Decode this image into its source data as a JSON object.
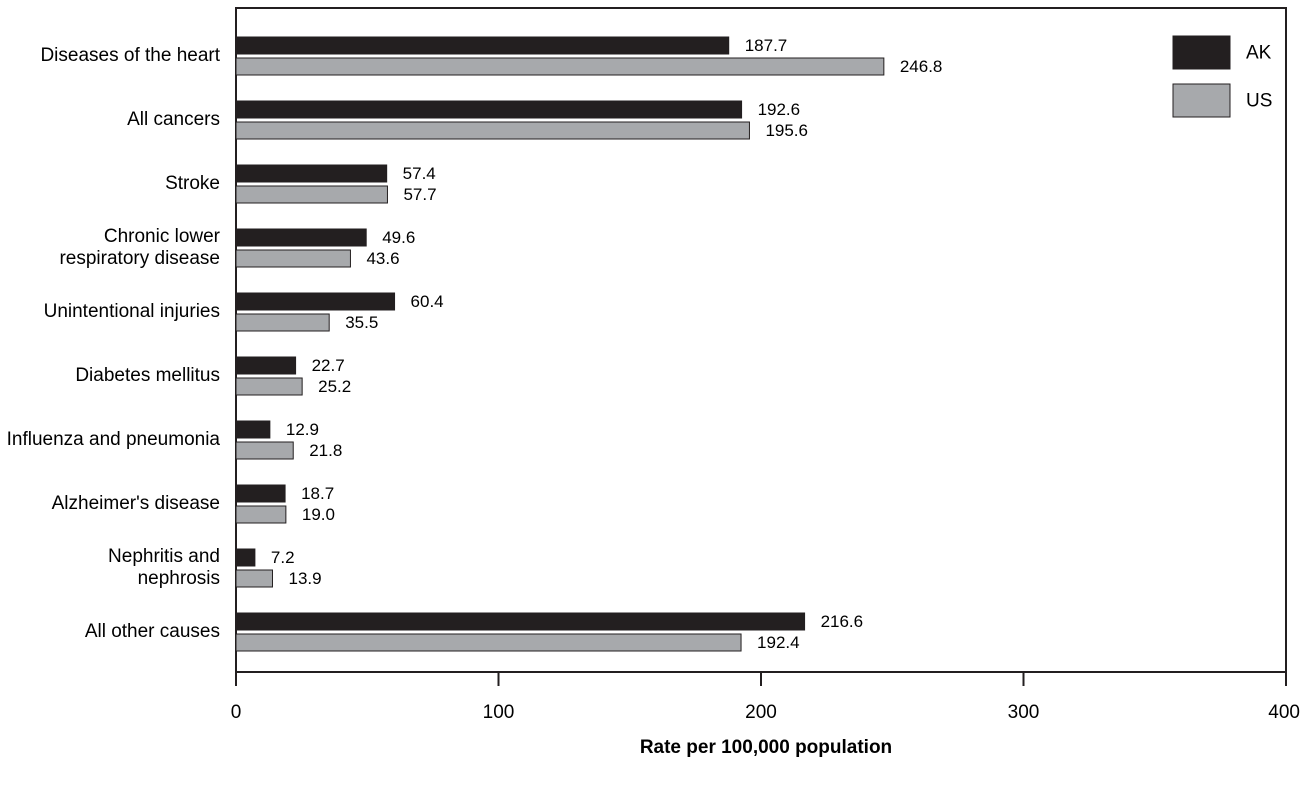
{
  "chart_data": {
    "type": "bar",
    "orientation": "horizontal",
    "categories": [
      [
        "Diseases of the heart"
      ],
      [
        "All cancers"
      ],
      [
        "Stroke"
      ],
      [
        "Chronic lower",
        "respiratory disease"
      ],
      [
        "Unintentional injuries"
      ],
      [
        "Diabetes mellitus"
      ],
      [
        "Influenza and pneumonia"
      ],
      [
        "Alzheimer's disease"
      ],
      [
        "Nephritis and",
        "nephrosis"
      ],
      [
        "All other causes"
      ]
    ],
    "series": [
      {
        "name": "AK",
        "color": "#231f20",
        "values": [
          187.7,
          192.6,
          57.4,
          49.6,
          60.4,
          22.7,
          12.9,
          18.7,
          7.2,
          216.6
        ],
        "labels": [
          "187.7",
          "192.6",
          "57.4",
          "49.6",
          "60.4",
          "22.7",
          "12.9",
          "18.7",
          "7.2",
          "216.6"
        ]
      },
      {
        "name": "US",
        "color": "#a7a9ac",
        "values": [
          246.8,
          195.6,
          57.7,
          43.6,
          35.5,
          25.2,
          21.8,
          19.0,
          13.9,
          192.4
        ],
        "labels": [
          "246.8",
          "195.6",
          "57.7",
          "43.6",
          "35.5",
          "25.2",
          "21.8",
          "19.0",
          "13.9",
          "192.4"
        ]
      }
    ],
    "xlabel": "Rate per 100,000 population",
    "xlim": [
      0,
      400
    ],
    "xticks": [
      0,
      100,
      200,
      300,
      400
    ],
    "grid": false,
    "legend_position": "top-right"
  }
}
